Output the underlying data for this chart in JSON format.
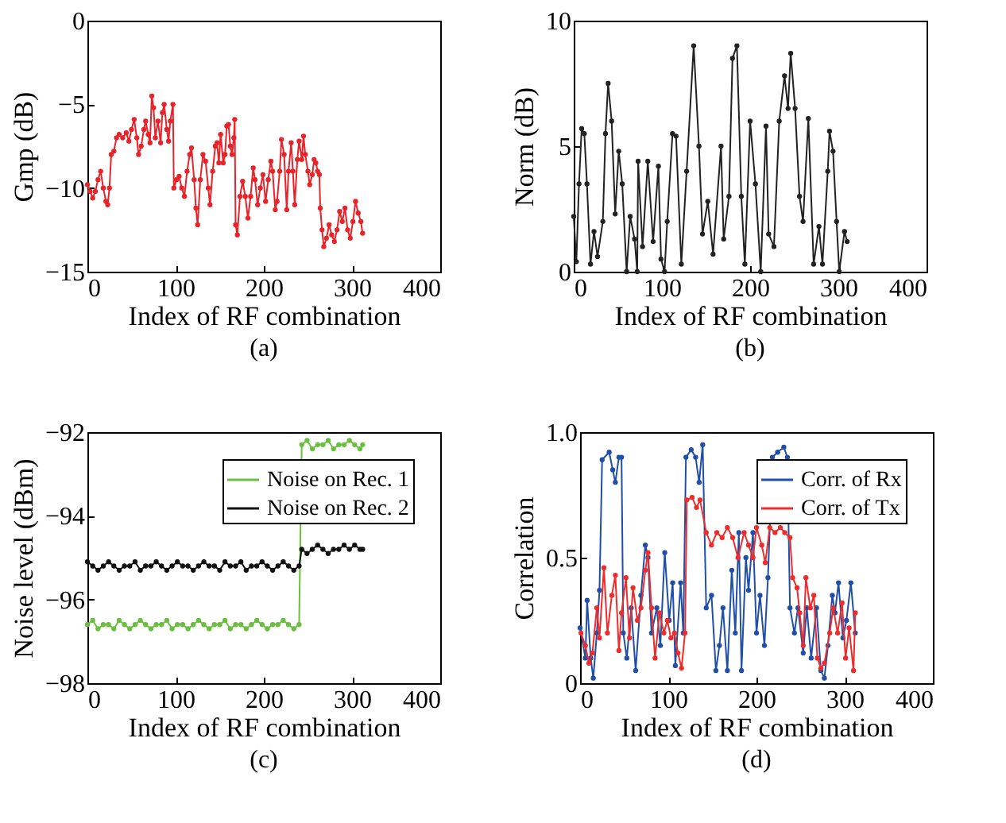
{
  "chart_data": [
    {
      "type": "line",
      "xlabel": "Index of RF combination",
      "ylabel": "Gmp (dB)",
      "annotations": [
        "(a)"
      ],
      "xlim": [
        0,
        400
      ],
      "xticks": [
        0,
        100,
        200,
        300,
        400
      ],
      "ylim": [
        -15,
        0
      ],
      "yticks": [
        -15,
        -10,
        -5,
        0
      ],
      "marker": "circle",
      "line_style": "solid",
      "series": [
        {
          "color": "#e8232a",
          "x": [
            0,
            3,
            6,
            9,
            12,
            15,
            18,
            21,
            23,
            25,
            27,
            30,
            33,
            36,
            40,
            44,
            47,
            50,
            53,
            56,
            58,
            61,
            64,
            66,
            69,
            71,
            73,
            75,
            77,
            80,
            83,
            85,
            87,
            90,
            92,
            94,
            97,
            98,
            101,
            104,
            107,
            110,
            113,
            116,
            118,
            121,
            123,
            125,
            128,
            131,
            134,
            137,
            139,
            142,
            145,
            147,
            149,
            151,
            154,
            156,
            158,
            160,
            162,
            164,
            166,
            167,
            168,
            170,
            173,
            176,
            179,
            182,
            185,
            188,
            190,
            193,
            196,
            199,
            202,
            205,
            208,
            210,
            213,
            215,
            218,
            220,
            223,
            226,
            228,
            231,
            233,
            235,
            238,
            240,
            243,
            245,
            247,
            250,
            252,
            255,
            257,
            259,
            261,
            263,
            264,
            266,
            268,
            271,
            274,
            277,
            280,
            283,
            286,
            289,
            292,
            295,
            298,
            301,
            304,
            307,
            310,
            312
          ],
          "values": [
            -9.8,
            -10.2,
            -10.6,
            -10.2,
            -9.5,
            -9.0,
            -10.0,
            -10.8,
            -11.0,
            -10.0,
            -8.0,
            -7.8,
            -7.0,
            -6.8,
            -7.0,
            -6.7,
            -7.2,
            -6.5,
            -5.9,
            -7.0,
            -8.0,
            -7.5,
            -6.5,
            -6.0,
            -6.8,
            -7.3,
            -4.5,
            -5.2,
            -7.0,
            -6.0,
            -7.3,
            -5.5,
            -5.0,
            -6.5,
            -7.2,
            -6.0,
            -5.0,
            -10.0,
            -9.5,
            -9.3,
            -10.0,
            -10.5,
            -9.0,
            -8.0,
            -7.6,
            -9.5,
            -11.2,
            -12.2,
            -9.5,
            -8.0,
            -8.4,
            -10.0,
            -11.0,
            -9.0,
            -7.5,
            -7.3,
            -8.5,
            -6.8,
            -8.5,
            -8.0,
            -6.3,
            -6.2,
            -7.5,
            -8.0,
            -7.0,
            -5.9,
            -12.2,
            -12.8,
            -10.5,
            -9.6,
            -10.5,
            -11.8,
            -10.5,
            -8.8,
            -9.5,
            -11.0,
            -10.0,
            -9.2,
            -10.8,
            -9.5,
            -8.4,
            -9.0,
            -11.3,
            -10.8,
            -9.0,
            -7.1,
            -8.0,
            -11.3,
            -9.0,
            -7.3,
            -9.0,
            -11.0,
            -8.3,
            -7.2,
            -8.3,
            -6.9,
            -8.0,
            -9.0,
            -9.8,
            -9.2,
            -8.3,
            -8.5,
            -9.0,
            -9.2,
            -11.2,
            -12.5,
            -13.5,
            -13.0,
            -12.2,
            -12.8,
            -13.2,
            -12.5,
            -11.4,
            -12.0,
            -11.2,
            -12.5,
            -13.0,
            -12.0,
            -10.8,
            -11.5,
            -12.0,
            -12.7
          ]
        }
      ]
    },
    {
      "type": "line",
      "xlabel": "Index of RF combination",
      "ylabel": "Norm (dB)",
      "annotations": [
        "(b)"
      ],
      "xlim": [
        0,
        400
      ],
      "xticks": [
        0,
        100,
        200,
        300,
        400
      ],
      "ylim": [
        0,
        10
      ],
      "yticks": [
        0,
        5,
        10
      ],
      "marker": "circle",
      "line_style": "solid",
      "series": [
        {
          "color": "#222222",
          "x": [
            0,
            3,
            6,
            9,
            12,
            15,
            19,
            23,
            27,
            33,
            36,
            39,
            43,
            47,
            51,
            55,
            60,
            64,
            69,
            72,
            73,
            78,
            84,
            90,
            96,
            99,
            103,
            106,
            112,
            116,
            122,
            128,
            136,
            142,
            146,
            152,
            158,
            167,
            170,
            176,
            180,
            185,
            190,
            194,
            200,
            206,
            212,
            218,
            221,
            227,
            233,
            239,
            243,
            246,
            251,
            256,
            260,
            266,
            272,
            278,
            282,
            288,
            290,
            294,
            298,
            301,
            307,
            310
          ],
          "values": [
            2.2,
            0.4,
            3.5,
            5.7,
            5.5,
            3.5,
            0.3,
            1.6,
            0.6,
            2.0,
            5.5,
            7.5,
            6.0,
            2.3,
            4.8,
            3.5,
            0,
            2.2,
            1.3,
            0,
            4.4,
            1.0,
            4.4,
            1.2,
            4.2,
            0.5,
            0,
            2.0,
            5.5,
            5.4,
            0.3,
            4.0,
            9.0,
            5.0,
            1.5,
            2.8,
            0.7,
            5.0,
            1.3,
            3.0,
            8.5,
            9.0,
            3.0,
            0.3,
            6.0,
            3.5,
            0,
            5.8,
            1.5,
            1.0,
            6.0,
            7.8,
            6.5,
            8.7,
            6.5,
            3.0,
            2.0,
            6.1,
            0.3,
            1.8,
            0.3,
            4.0,
            5.6,
            4.8,
            2.0,
            0,
            1.6,
            1.2
          ]
        }
      ]
    },
    {
      "type": "line",
      "xlabel": "Index of RF combination",
      "ylabel": "Noise level (dBm)",
      "annotations": [
        "(c)"
      ],
      "xlim": [
        0,
        400
      ],
      "xticks": [
        0,
        100,
        200,
        300,
        400
      ],
      "ylim": [
        -98,
        -92
      ],
      "yticks": [
        -98,
        -96,
        -94,
        -92
      ],
      "marker": "circle",
      "line_style": "solid",
      "legend": "top right",
      "series": [
        {
          "name": "Noise on Rec. 1",
          "color": "#6abf3f",
          "x": [
            0,
            6,
            12,
            18,
            24,
            30,
            36,
            42,
            48,
            54,
            60,
            66,
            72,
            78,
            84,
            90,
            96,
            102,
            108,
            114,
            120,
            126,
            132,
            138,
            144,
            150,
            156,
            162,
            168,
            174,
            180,
            186,
            192,
            198,
            204,
            210,
            216,
            222,
            228,
            234,
            240,
            243,
            249,
            255,
            261,
            267,
            273,
            279,
            285,
            291,
            297,
            303,
            309,
            312
          ],
          "values": [
            -96.6,
            -96.5,
            -96.7,
            -96.6,
            -96.6,
            -96.7,
            -96.5,
            -96.6,
            -96.7,
            -96.6,
            -96.5,
            -96.6,
            -96.7,
            -96.6,
            -96.6,
            -96.5,
            -96.7,
            -96.6,
            -96.6,
            -96.7,
            -96.6,
            -96.5,
            -96.6,
            -96.7,
            -96.6,
            -96.6,
            -96.5,
            -96.7,
            -96.6,
            -96.6,
            -96.7,
            -96.6,
            -96.5,
            -96.6,
            -96.7,
            -96.6,
            -96.6,
            -96.5,
            -96.6,
            -96.7,
            -96.6,
            -92.3,
            -92.2,
            -92.4,
            -92.3,
            -92.3,
            -92.2,
            -92.4,
            -92.3,
            -92.3,
            -92.2,
            -92.3,
            -92.4,
            -92.3
          ]
        },
        {
          "name": "Noise on Rec. 2",
          "color": "#111111",
          "x": [
            0,
            6,
            12,
            18,
            24,
            30,
            36,
            42,
            48,
            54,
            60,
            66,
            72,
            78,
            84,
            90,
            96,
            102,
            108,
            114,
            120,
            126,
            132,
            138,
            144,
            150,
            156,
            162,
            168,
            174,
            180,
            186,
            192,
            198,
            204,
            210,
            216,
            222,
            228,
            234,
            240,
            243,
            249,
            255,
            261,
            267,
            273,
            279,
            285,
            291,
            297,
            303,
            309,
            312
          ],
          "values": [
            -95.1,
            -95.2,
            -95.3,
            -95.2,
            -95.1,
            -95.2,
            -95.3,
            -95.2,
            -95.2,
            -95.1,
            -95.3,
            -95.2,
            -95.2,
            -95.1,
            -95.2,
            -95.3,
            -95.2,
            -95.1,
            -95.2,
            -95.2,
            -95.3,
            -95.2,
            -95.1,
            -95.2,
            -95.2,
            -95.3,
            -95.1,
            -95.2,
            -95.2,
            -95.1,
            -95.3,
            -95.2,
            -95.2,
            -95.1,
            -95.2,
            -95.3,
            -95.2,
            -95.1,
            -95.2,
            -95.3,
            -95.2,
            -94.8,
            -94.9,
            -94.8,
            -94.7,
            -94.8,
            -94.9,
            -94.8,
            -94.8,
            -94.7,
            -94.8,
            -94.7,
            -94.8,
            -94.8
          ]
        }
      ]
    },
    {
      "type": "line",
      "xlabel": "Index of RF combination",
      "ylabel": "Correlation",
      "annotations": [
        "(d)"
      ],
      "xlim": [
        0,
        400
      ],
      "xticks": [
        0,
        100,
        200,
        300,
        400
      ],
      "ylim": [
        0,
        1
      ],
      "yticks": [
        0,
        0.5,
        {
          "value": 1,
          "label": "1.0"
        }
      ],
      "marker": "circle",
      "line_style": "solid",
      "legend": "top right",
      "series": [
        {
          "name": "Corr. of Rx",
          "color": "#1f4fa8",
          "x": [
            0,
            6,
            8,
            12,
            15,
            19,
            22,
            25,
            33,
            37,
            40,
            44,
            47,
            49,
            53,
            58,
            63,
            69,
            74,
            77,
            81,
            87,
            91,
            96,
            101,
            105,
            108,
            114,
            117,
            120,
            126,
            131,
            135,
            139,
            143,
            149,
            154,
            158,
            162,
            167,
            172,
            176,
            180,
            183,
            188,
            191,
            196,
            200,
            204,
            209,
            213,
            218,
            224,
            231,
            235,
            238,
            243,
            247,
            253,
            257,
            262,
            268,
            273,
            277,
            281,
            286,
            289,
            293,
            298,
            302,
            307,
            312
          ],
          "values": [
            0.22,
            0.1,
            0.33,
            0.1,
            0.02,
            0.2,
            0.37,
            0.89,
            0.92,
            0.85,
            0.8,
            0.9,
            0.9,
            0.2,
            0.1,
            0.3,
            0.05,
            0.35,
            0.55,
            0.5,
            0.2,
            0.3,
            0.15,
            0.52,
            0.25,
            0.4,
            0.07,
            0.4,
            0.2,
            0.9,
            0.93,
            0.9,
            0.8,
            0.95,
            0.3,
            0.35,
            0.05,
            0.15,
            0.3,
            0.05,
            0.45,
            0.2,
            0.6,
            0.05,
            0.5,
            0.37,
            0.6,
            0.2,
            0.35,
            0.15,
            0.42,
            0.9,
            0.92,
            0.94,
            0.9,
            0.3,
            0.2,
            0.3,
            0.12,
            0.3,
            0.1,
            0.3,
            0.05,
            0.02,
            0.15,
            0.35,
            0.28,
            0.4,
            0.18,
            0.25,
            0.4,
            0.2
          ]
        },
        {
          "name": "Corr. of Tx",
          "color": "#ee2c2c",
          "x": [
            1,
            6,
            10,
            14,
            19,
            22,
            27,
            31,
            36,
            40,
            44,
            47,
            52,
            56,
            60,
            65,
            69,
            74,
            77,
            81,
            85,
            90,
            95,
            99,
            103,
            107,
            111,
            115,
            119,
            121,
            127,
            132,
            136,
            143,
            149,
            155,
            161,
            167,
            173,
            179,
            186,
            191,
            196,
            200,
            206,
            210,
            215,
            221,
            227,
            232,
            238,
            241,
            246,
            249,
            253,
            256,
            261,
            265,
            269,
            273,
            277,
            283,
            287,
            292,
            297,
            301,
            305,
            310,
            312
          ],
          "values": [
            0.2,
            0.15,
            0.08,
            0.12,
            0.3,
            0.18,
            0.46,
            0.2,
            0.35,
            0.43,
            0.13,
            0.28,
            0.42,
            0.18,
            0.38,
            0.25,
            0.3,
            0.45,
            0.52,
            0.3,
            0.1,
            0.28,
            0.2,
            0.25,
            0.18,
            0.2,
            0.12,
            0.06,
            0.2,
            0.73,
            0.74,
            0.7,
            0.73,
            0.6,
            0.55,
            0.6,
            0.58,
            0.62,
            0.58,
            0.5,
            0.6,
            0.55,
            0.5,
            0.62,
            0.55,
            0.48,
            0.62,
            0.6,
            0.62,
            0.6,
            0.58,
            0.42,
            0.38,
            0.28,
            0.15,
            0.42,
            0.3,
            0.35,
            0.1,
            0.06,
            0.08,
            0.2,
            0.3,
            0.2,
            0.32,
            0.1,
            0.22,
            0.05,
            0.28
          ]
        }
      ]
    }
  ]
}
